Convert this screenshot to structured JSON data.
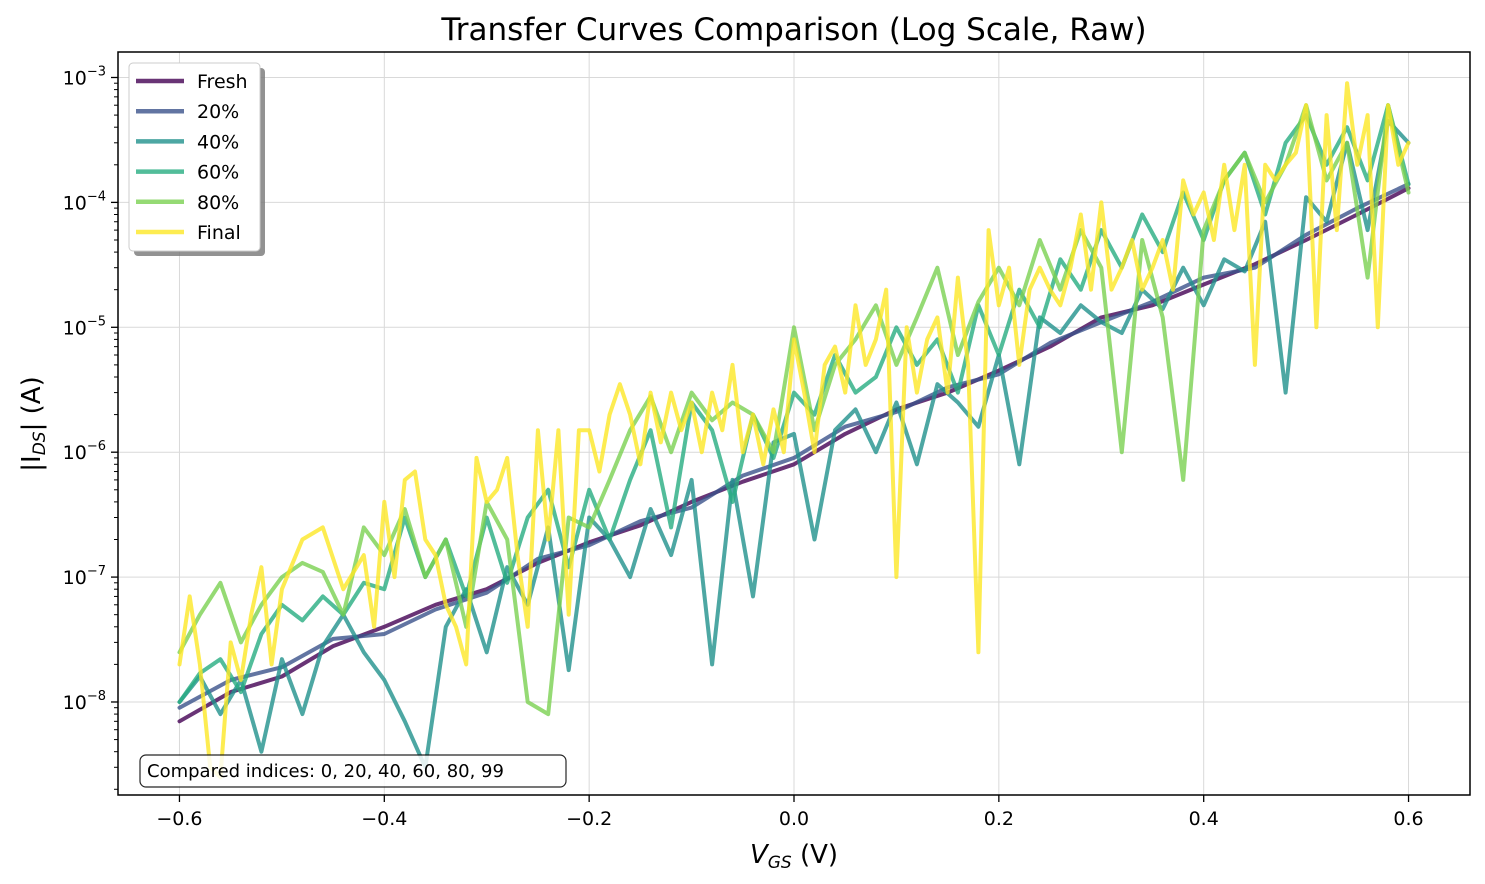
{
  "chart_data": {
    "type": "line",
    "title": "Transfer Curves Comparison (Log Scale, Raw)",
    "xlabel_main": "V",
    "xlabel_sub": "GS",
    "xlabel_unit": " (V)",
    "ylabel_pre": "|I",
    "ylabel_sub": "DS",
    "ylabel_post": "| (A)",
    "xlim": [
      -0.66,
      0.66
    ],
    "ylim": [
      1.8e-09,
      0.0016
    ],
    "yscale": "log",
    "grid": true,
    "legend_position": "top-left",
    "x_ticks": [
      -0.6,
      -0.4,
      -0.2,
      0.0,
      0.2,
      0.4,
      0.6
    ],
    "x_tick_labels": [
      "−0.6",
      "−0.4",
      "−0.2",
      "0.0",
      "0.2",
      "0.4",
      "0.6"
    ],
    "y_ticks": [
      {
        "value": 1e-08,
        "mant": "10",
        "exp": "−8"
      },
      {
        "value": 1e-07,
        "mant": "10",
        "exp": "−7"
      },
      {
        "value": 1e-06,
        "mant": "10",
        "exp": "−6"
      },
      {
        "value": 1e-05,
        "mant": "10",
        "exp": "−5"
      },
      {
        "value": 0.0001,
        "mant": "10",
        "exp": "−4"
      },
      {
        "value": 0.001,
        "mant": "10",
        "exp": "−3"
      }
    ],
    "annotation": "Compared indices: 0, 20, 40, 60, 80, 99",
    "series": [
      {
        "name": "Fresh",
        "color": "#440154",
        "x": [
          -0.6,
          -0.55,
          -0.5,
          -0.45,
          -0.4,
          -0.35,
          -0.3,
          -0.25,
          -0.2,
          -0.15,
          -0.1,
          -0.05,
          0.0,
          0.05,
          0.1,
          0.15,
          0.2,
          0.25,
          0.3,
          0.35,
          0.4,
          0.45,
          0.5,
          0.55,
          0.6
        ],
        "y": [
          7e-09,
          1.2e-08,
          1.6e-08,
          2.8e-08,
          4e-08,
          6e-08,
          8e-08,
          1.3e-07,
          1.9e-07,
          2.6e-07,
          4e-07,
          5.8e-07,
          8e-07,
          1.4e-06,
          2.2e-06,
          3e-06,
          4.5e-06,
          7e-06,
          1.2e-05,
          1.5e-05,
          2.2e-05,
          3.2e-05,
          5e-05,
          8e-05,
          0.00013
        ]
      },
      {
        "name": "20%",
        "color": "#3b528b",
        "x": [
          -0.6,
          -0.55,
          -0.5,
          -0.45,
          -0.4,
          -0.35,
          -0.3,
          -0.25,
          -0.2,
          -0.15,
          -0.1,
          -0.05,
          0.0,
          0.05,
          0.1,
          0.15,
          0.2,
          0.25,
          0.3,
          0.35,
          0.4,
          0.45,
          0.5,
          0.55,
          0.6
        ],
        "y": [
          9e-09,
          1.5e-08,
          1.9e-08,
          3.2e-08,
          3.5e-08,
          5.5e-08,
          7.5e-08,
          1.4e-07,
          1.8e-07,
          2.8e-07,
          3.6e-07,
          6.5e-07,
          9e-07,
          1.6e-06,
          2.1e-06,
          3.3e-06,
          4.2e-06,
          7.5e-06,
          1.1e-05,
          1.6e-05,
          2.5e-05,
          3e-05,
          5.5e-05,
          9e-05,
          0.00014
        ]
      },
      {
        "name": "40%",
        "color": "#21918c",
        "x": [
          -0.6,
          -0.58,
          -0.56,
          -0.54,
          -0.52,
          -0.5,
          -0.48,
          -0.46,
          -0.44,
          -0.42,
          -0.4,
          -0.38,
          -0.36,
          -0.34,
          -0.32,
          -0.3,
          -0.28,
          -0.26,
          -0.24,
          -0.22,
          -0.2,
          -0.18,
          -0.16,
          -0.14,
          -0.12,
          -0.1,
          -0.08,
          -0.06,
          -0.04,
          -0.02,
          0.0,
          0.02,
          0.04,
          0.06,
          0.08,
          0.1,
          0.12,
          0.14,
          0.16,
          0.18,
          0.2,
          0.22,
          0.24,
          0.26,
          0.28,
          0.3,
          0.32,
          0.34,
          0.36,
          0.38,
          0.4,
          0.42,
          0.44,
          0.46,
          0.48,
          0.5,
          0.52,
          0.54,
          0.56,
          0.58,
          0.6
        ],
        "y": [
          1e-08,
          1.6e-08,
          8e-09,
          1.5e-08,
          4e-09,
          2.2e-08,
          8e-09,
          2.8e-08,
          5e-08,
          2.5e-08,
          1.5e-08,
          7e-09,
          3e-09,
          4e-08,
          8e-08,
          2.5e-08,
          1.2e-07,
          6e-08,
          2.5e-07,
          1.8e-08,
          3e-07,
          2e-07,
          1e-07,
          3.5e-07,
          1.5e-07,
          6e-07,
          2e-08,
          6e-07,
          7e-08,
          1.2e-06,
          1.4e-06,
          2e-07,
          1.5e-06,
          2.2e-06,
          1e-06,
          2.5e-06,
          8e-07,
          3.5e-06,
          2.5e-06,
          1.6e-06,
          6e-06,
          8e-07,
          1.2e-05,
          9e-06,
          1.5e-05,
          1.1e-05,
          9e-06,
          2e-05,
          1.4e-05,
          3e-05,
          1.5e-05,
          3.5e-05,
          2.8e-05,
          7e-05,
          3e-06,
          0.00011,
          7e-05,
          0.0003,
          6e-05,
          0.00045,
          0.0003
        ]
      },
      {
        "name": "60%",
        "color": "#27ad81",
        "x": [
          -0.6,
          -0.58,
          -0.56,
          -0.54,
          -0.52,
          -0.5,
          -0.48,
          -0.46,
          -0.44,
          -0.42,
          -0.4,
          -0.38,
          -0.36,
          -0.34,
          -0.32,
          -0.3,
          -0.28,
          -0.26,
          -0.24,
          -0.22,
          -0.2,
          -0.18,
          -0.16,
          -0.14,
          -0.12,
          -0.1,
          -0.08,
          -0.06,
          -0.04,
          -0.02,
          0.0,
          0.02,
          0.04,
          0.06,
          0.08,
          0.1,
          0.12,
          0.14,
          0.16,
          0.18,
          0.2,
          0.22,
          0.24,
          0.26,
          0.28,
          0.3,
          0.32,
          0.34,
          0.36,
          0.38,
          0.4,
          0.42,
          0.44,
          0.46,
          0.48,
          0.5,
          0.52,
          0.54,
          0.56,
          0.58,
          0.6
        ],
        "y": [
          1e-08,
          1.7e-08,
          2.2e-08,
          1.2e-08,
          3.5e-08,
          6e-08,
          4.5e-08,
          7e-08,
          5e-08,
          9e-08,
          8e-08,
          3e-07,
          1e-07,
          2e-07,
          7e-08,
          3e-07,
          9e-08,
          3e-07,
          5e-07,
          1.2e-07,
          5e-07,
          2e-07,
          6e-07,
          1.5e-06,
          2.5e-07,
          2.5e-06,
          1.5e-06,
          4e-07,
          2e-06,
          9e-07,
          3e-06,
          2e-06,
          6e-06,
          3e-06,
          4e-06,
          1e-05,
          5e-06,
          8e-06,
          3e-06,
          1.5e-05,
          6e-06,
          2e-05,
          1e-05,
          3.5e-05,
          2e-05,
          6e-05,
          3e-05,
          8e-05,
          4e-05,
          0.00012,
          5e-05,
          0.00015,
          0.00025,
          8e-05,
          0.0003,
          0.0005,
          0.0002,
          0.0004,
          0.00015,
          0.0006,
          0.00014
        ]
      },
      {
        "name": "80%",
        "color": "#7ad151",
        "x": [
          -0.6,
          -0.58,
          -0.56,
          -0.54,
          -0.52,
          -0.5,
          -0.48,
          -0.46,
          -0.44,
          -0.42,
          -0.4,
          -0.38,
          -0.36,
          -0.34,
          -0.32,
          -0.3,
          -0.28,
          -0.26,
          -0.24,
          -0.22,
          -0.2,
          -0.18,
          -0.16,
          -0.14,
          -0.12,
          -0.1,
          -0.08,
          -0.06,
          -0.04,
          -0.02,
          0.0,
          0.02,
          0.04,
          0.06,
          0.08,
          0.1,
          0.12,
          0.14,
          0.16,
          0.18,
          0.2,
          0.22,
          0.24,
          0.26,
          0.28,
          0.3,
          0.32,
          0.34,
          0.36,
          0.38,
          0.4,
          0.42,
          0.44,
          0.46,
          0.48,
          0.5,
          0.52,
          0.54,
          0.56,
          0.58,
          0.6
        ],
        "y": [
          2.5e-08,
          5e-08,
          9e-08,
          3e-08,
          6e-08,
          1e-07,
          1.3e-07,
          1.1e-07,
          5e-08,
          2.5e-07,
          1.5e-07,
          3.5e-07,
          1e-07,
          2e-07,
          4e-08,
          4e-07,
          2e-07,
          1e-08,
          8e-09,
          3e-07,
          2.5e-07,
          6e-07,
          1.5e-06,
          2.8e-06,
          1e-06,
          3e-06,
          1.8e-06,
          2.5e-06,
          2e-06,
          1e-06,
          1e-05,
          1.5e-06,
          5e-06,
          8e-06,
          1.5e-05,
          5e-06,
          1.2e-05,
          3e-05,
          6e-06,
          1.6e-05,
          3e-05,
          1.5e-05,
          5e-05,
          2e-05,
          6e-05,
          3e-05,
          1e-06,
          5e-05,
          1.2e-05,
          6e-07,
          6e-05,
          0.00015,
          0.00025,
          0.0001,
          0.0002,
          0.0006,
          0.00015,
          0.0003,
          2.5e-05,
          0.0006,
          0.00012
        ]
      },
      {
        "name": "Final",
        "color": "#fde725",
        "x": [
          -0.6,
          -0.59,
          -0.58,
          -0.57,
          -0.56,
          -0.55,
          -0.54,
          -0.53,
          -0.52,
          -0.51,
          -0.5,
          -0.48,
          -0.46,
          -0.44,
          -0.42,
          -0.41,
          -0.4,
          -0.39,
          -0.38,
          -0.37,
          -0.36,
          -0.35,
          -0.34,
          -0.33,
          -0.32,
          -0.31,
          -0.3,
          -0.29,
          -0.28,
          -0.27,
          -0.26,
          -0.25,
          -0.24,
          -0.23,
          -0.22,
          -0.21,
          -0.2,
          -0.19,
          -0.18,
          -0.17,
          -0.16,
          -0.15,
          -0.14,
          -0.13,
          -0.12,
          -0.11,
          -0.1,
          -0.09,
          -0.08,
          -0.07,
          -0.06,
          -0.05,
          -0.04,
          -0.03,
          -0.02,
          -0.01,
          0.0,
          0.01,
          0.02,
          0.03,
          0.04,
          0.05,
          0.06,
          0.07,
          0.08,
          0.09,
          0.1,
          0.11,
          0.12,
          0.13,
          0.14,
          0.15,
          0.16,
          0.17,
          0.18,
          0.19,
          0.2,
          0.21,
          0.22,
          0.23,
          0.24,
          0.25,
          0.26,
          0.27,
          0.28,
          0.29,
          0.3,
          0.31,
          0.32,
          0.33,
          0.34,
          0.35,
          0.36,
          0.37,
          0.38,
          0.39,
          0.4,
          0.41,
          0.42,
          0.43,
          0.44,
          0.45,
          0.46,
          0.47,
          0.48,
          0.49,
          0.5,
          0.51,
          0.52,
          0.53,
          0.54,
          0.55,
          0.56,
          0.57,
          0.58,
          0.59,
          0.6
        ],
        "y": [
          2e-08,
          7e-08,
          2e-08,
          3e-09,
          2.5e-09,
          3e-08,
          1.5e-08,
          5e-08,
          1.2e-07,
          2e-08,
          8e-08,
          2e-07,
          2.5e-07,
          8e-08,
          1.5e-07,
          4e-08,
          4e-07,
          1e-07,
          6e-07,
          7e-07,
          2e-07,
          1.5e-07,
          6e-08,
          4e-08,
          2e-08,
          9e-07,
          4e-07,
          5e-07,
          9e-07,
          1.5e-07,
          4e-08,
          1.5e-06,
          2e-07,
          1.5e-06,
          5e-08,
          1.5e-06,
          1.5e-06,
          7e-07,
          2e-06,
          3.5e-06,
          2e-06,
          8e-07,
          3e-06,
          1.2e-06,
          3e-06,
          1.5e-06,
          2.5e-06,
          1e-06,
          3e-06,
          1.5e-06,
          5e-06,
          1e-06,
          2e-06,
          8e-07,
          2.2e-06,
          1e-06,
          8e-06,
          3e-06,
          1e-06,
          5e-06,
          7e-06,
          3e-06,
          1.5e-05,
          5e-06,
          8e-06,
          2e-05,
          1e-07,
          1e-05,
          3e-06,
          8e-06,
          1.2e-05,
          3e-06,
          2.5e-05,
          5e-06,
          2.5e-08,
          6e-05,
          1.5e-05,
          3e-05,
          5e-06,
          2e-05,
          3e-05,
          2e-05,
          1.5e-05,
          3e-05,
          8e-05,
          2e-05,
          0.0001,
          2e-05,
          3e-05,
          5e-05,
          2e-05,
          3e-05,
          5e-05,
          2e-05,
          0.00015,
          8e-05,
          0.00012,
          5e-05,
          0.0002,
          6e-05,
          0.0002,
          5e-06,
          0.0002,
          0.00015,
          0.0002,
          0.00025,
          0.0006,
          1e-05,
          0.0005,
          6e-05,
          0.0009,
          0.0002,
          0.0005,
          1e-05,
          0.0006,
          0.0002,
          0.0003
        ]
      }
    ]
  }
}
